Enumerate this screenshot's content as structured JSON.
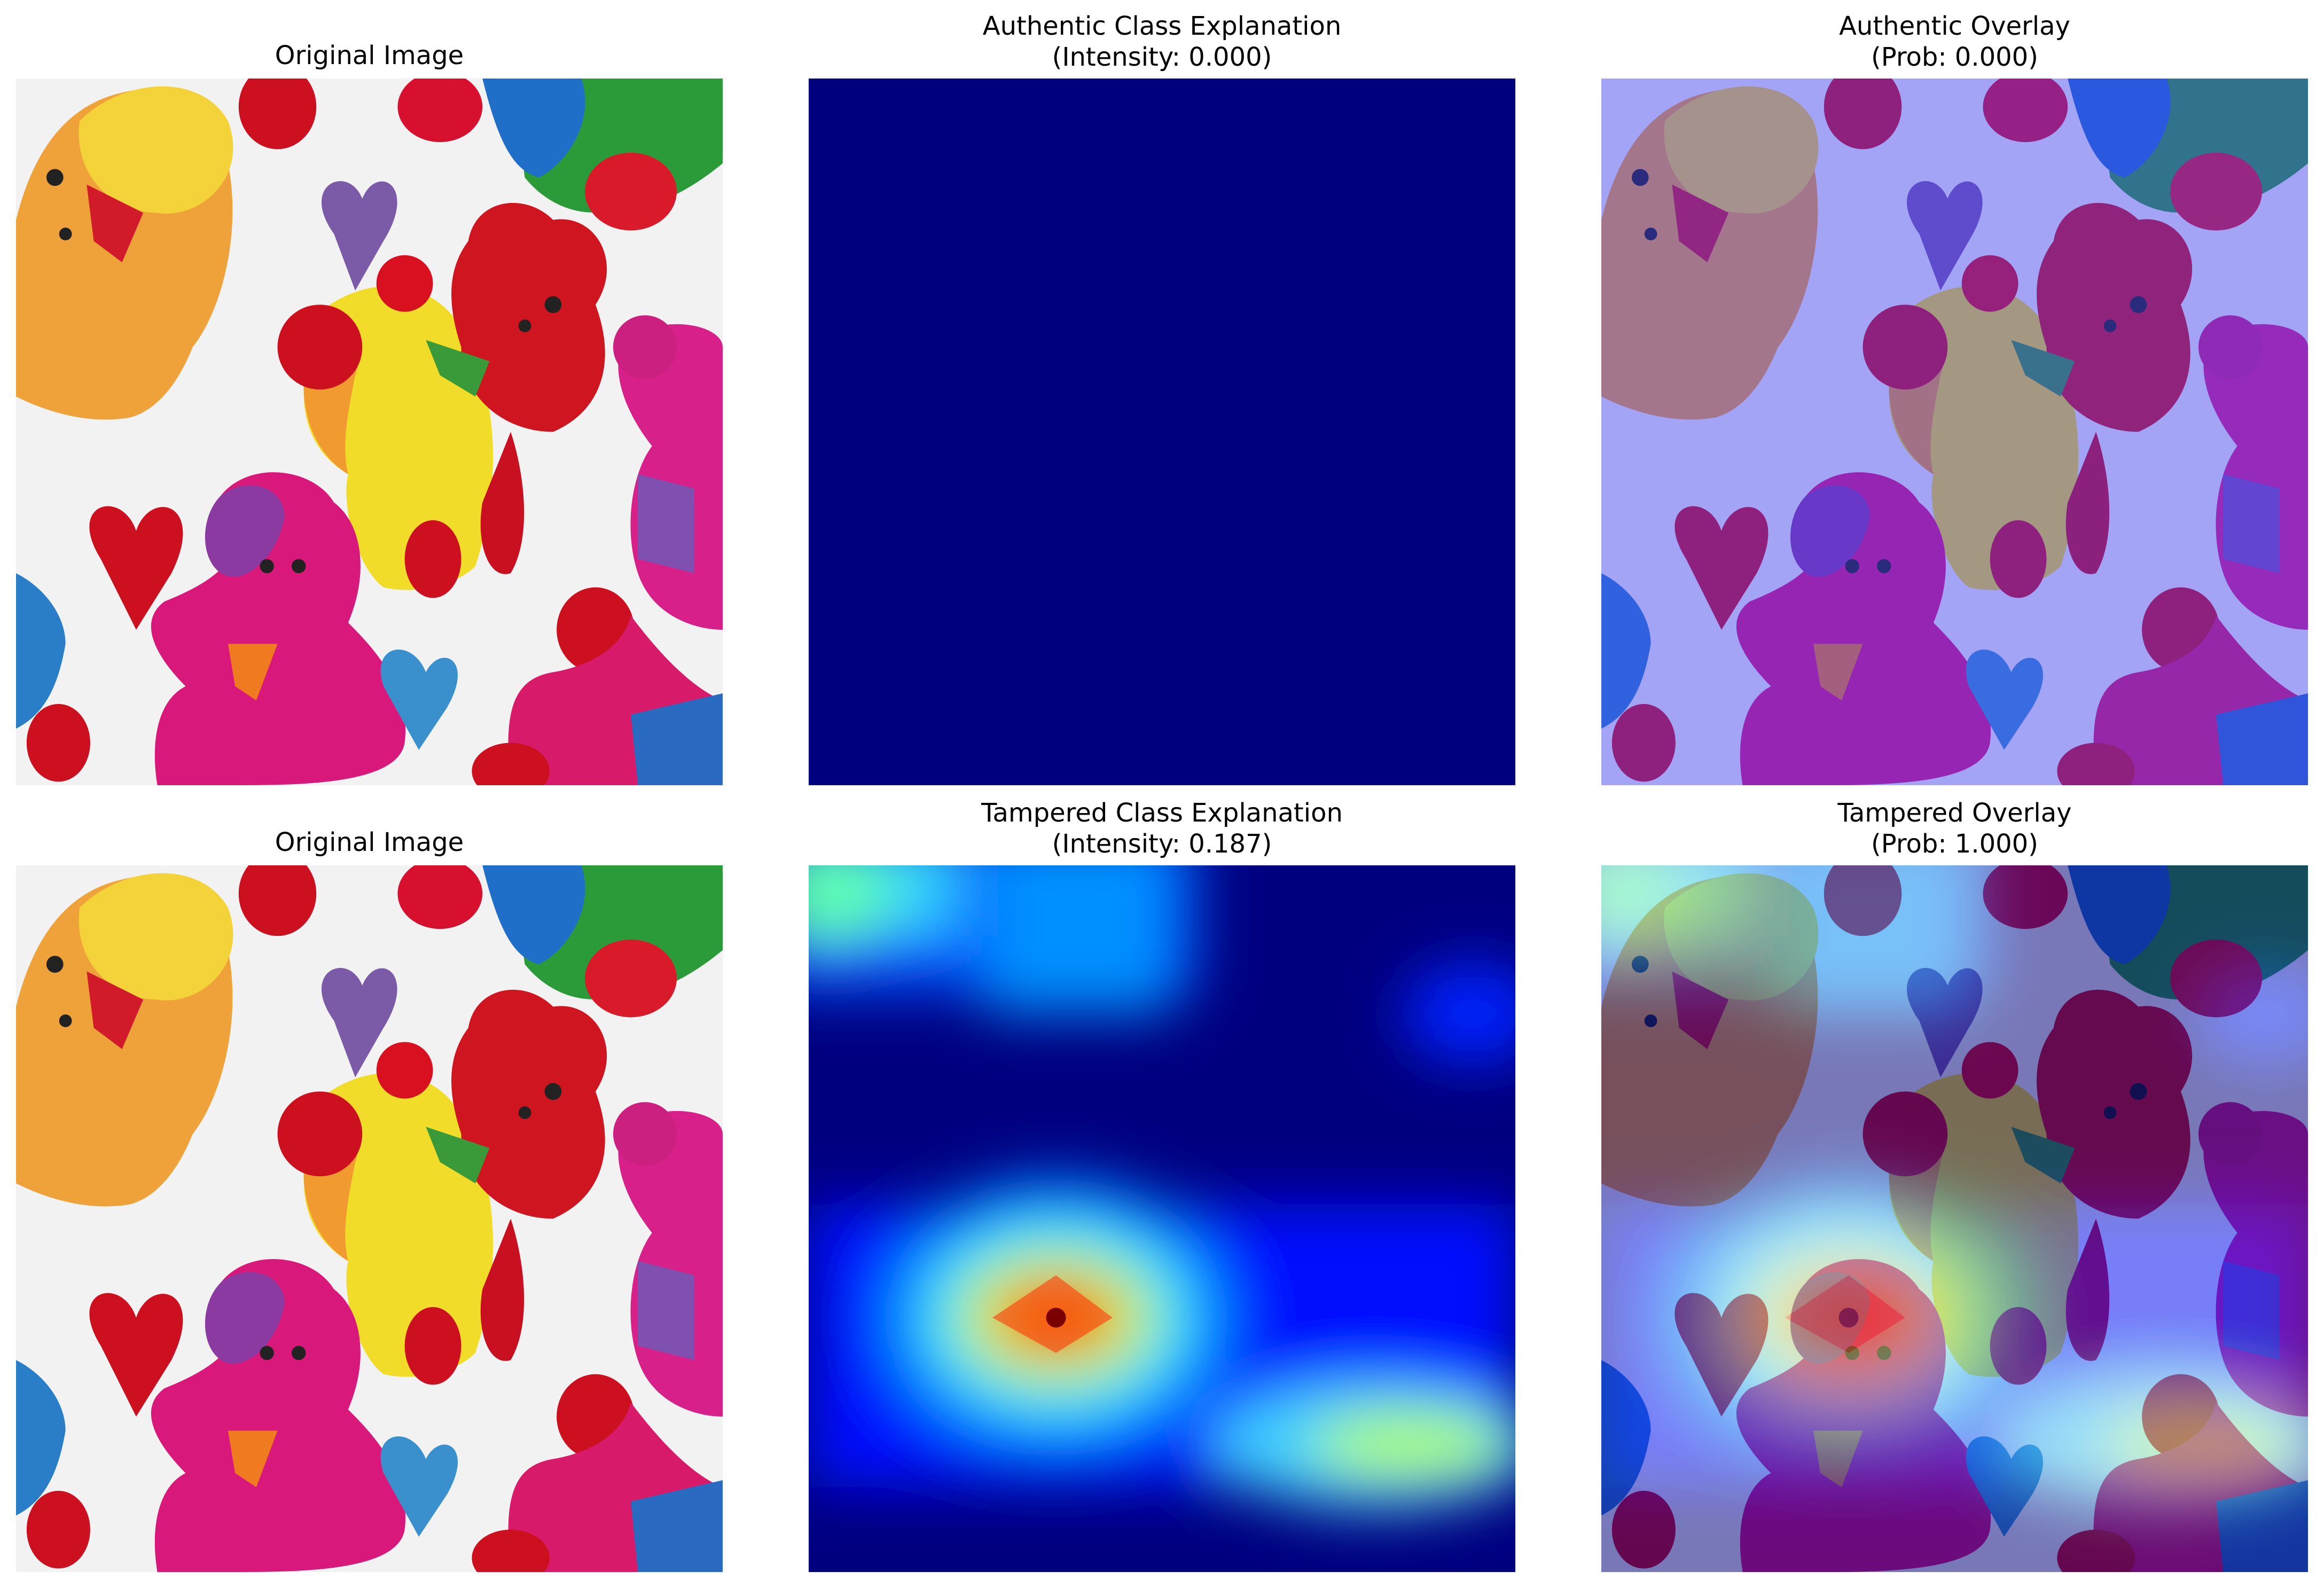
{
  "rows": [
    {
      "original": {
        "title": "Original Image"
      },
      "explanation": {
        "title_line1": "Authentic Class Explanation",
        "title_line2": "(Intensity: 0.000)"
      },
      "overlay": {
        "title_line1": "Authentic Overlay",
        "title_line2": "(Prob: 0.000)"
      }
    },
    {
      "original": {
        "title": "Original Image"
      },
      "explanation": {
        "title_line1": "Tampered Class Explanation",
        "title_line2": "(Intensity: 0.187)"
      },
      "overlay": {
        "title_line1": "Tampered Overlay",
        "title_line2": "(Prob: 1.000)"
      }
    }
  ],
  "colors": {
    "background": "#ffffff",
    "heatmap_min": "#00007f",
    "overlay_tint": "#8888ff"
  }
}
